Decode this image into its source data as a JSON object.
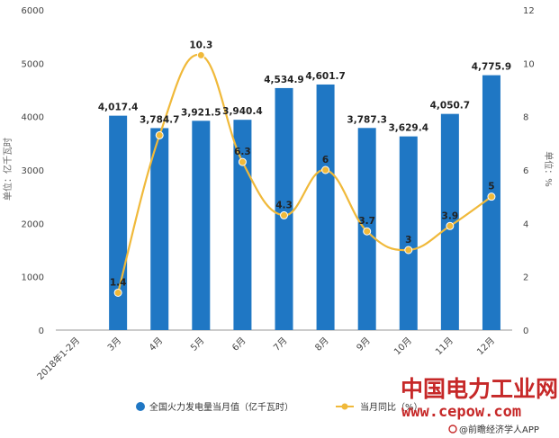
{
  "chart_data": {
    "type": "bar+line",
    "categories": [
      "2018年1-2月",
      "3月",
      "4月",
      "5月",
      "6月",
      "7月",
      "8月",
      "9月",
      "10月",
      "11月",
      "12月"
    ],
    "series": [
      {
        "name": "全国火力发电量当月值（亿千瓦时）",
        "type": "bar",
        "axis": "left",
        "color": "#1f77c4",
        "values": [
          null,
          4017.4,
          3784.7,
          3921.5,
          3940.4,
          4534.9,
          4601.7,
          3787.3,
          3629.4,
          4050.7,
          4775.9
        ],
        "labels": [
          "",
          "4,017.4",
          "3,784.7",
          "3,921.5",
          "3,940.4",
          "4,534.9",
          "4,601.7",
          "3,787.3",
          "3,629.4",
          "4,050.7",
          "4,775.9"
        ]
      },
      {
        "name": "当月同比（%）",
        "type": "line",
        "axis": "right",
        "color": "#f0b93a",
        "values": [
          null,
          1.4,
          7.3,
          10.3,
          6.3,
          4.3,
          6,
          3.7,
          3,
          3.9,
          5
        ],
        "labels": [
          "",
          "1.4",
          "",
          "10.3",
          "6.3",
          "4.3",
          "6",
          "3.7",
          "3",
          "3.9",
          "5"
        ]
      }
    ],
    "ylabel": "单位：亿千瓦时",
    "ylabel_right": "单位：%",
    "ylim": [
      0,
      6000
    ],
    "ylim_right": [
      0,
      12
    ],
    "yticks": [
      "0",
      "1000",
      "2000",
      "3000",
      "4000",
      "5000",
      "6000"
    ],
    "yticks_right": [
      "0",
      "2",
      "4",
      "6",
      "8",
      "10",
      "12"
    ],
    "grid": false,
    "legend_position": "bottom-center"
  },
  "watermark": {
    "title": "中国电力工业网",
    "url": "www.cepow.com",
    "credit": "@前瞻经济学人APP"
  }
}
